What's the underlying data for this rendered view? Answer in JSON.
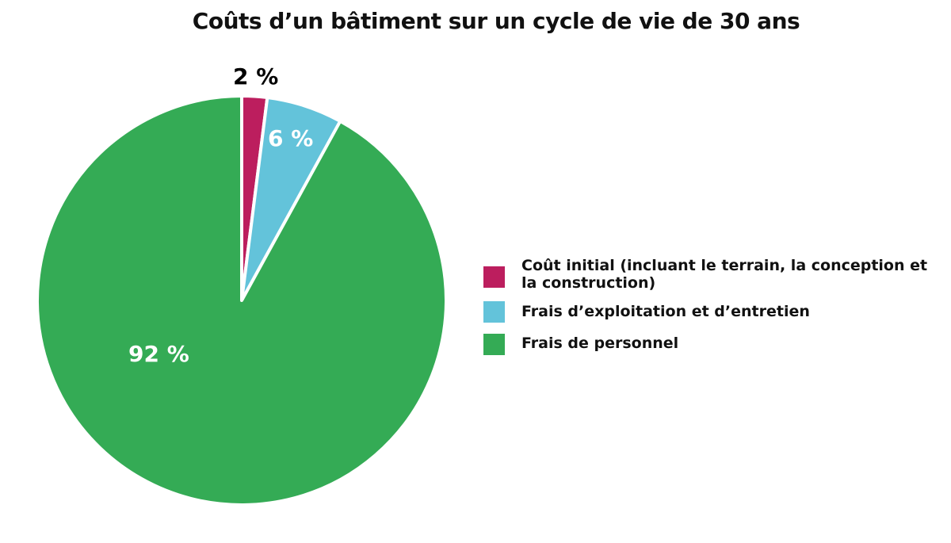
{
  "chart_data": {
    "type": "pie",
    "title": "Coûts d’un bâtiment sur un cycle de vie de 30 ans",
    "categories": [
      "Coût initial (incluant le terrain, la conception et la construction)",
      "Frais d’exploitation et d’entretien",
      "Frais de personnel"
    ],
    "values": [
      2,
      6,
      92
    ],
    "unit": "%",
    "data_labels": [
      "2 %",
      "6 %",
      "92 %"
    ],
    "colors": [
      "#bc1e5e",
      "#63c3da",
      "#34ab55"
    ],
    "legend_position": "right",
    "start_angle": "12 o'clock, clockwise"
  },
  "title": "Coûts d’un bâtiment sur un cycle de vie de 30 ans",
  "labels": {
    "initial": "2 %",
    "exploitation": "6 %",
    "personnel": "92 %"
  },
  "legend": [
    {
      "label": "Coût initial (incluant le terrain, la conception et la construction)",
      "color": "#bc1e5e"
    },
    {
      "label": "Frais d’exploitation et d’entretien",
      "color": "#63c3da"
    },
    {
      "label": "Frais de personnel",
      "color": "#34ab55"
    }
  ]
}
